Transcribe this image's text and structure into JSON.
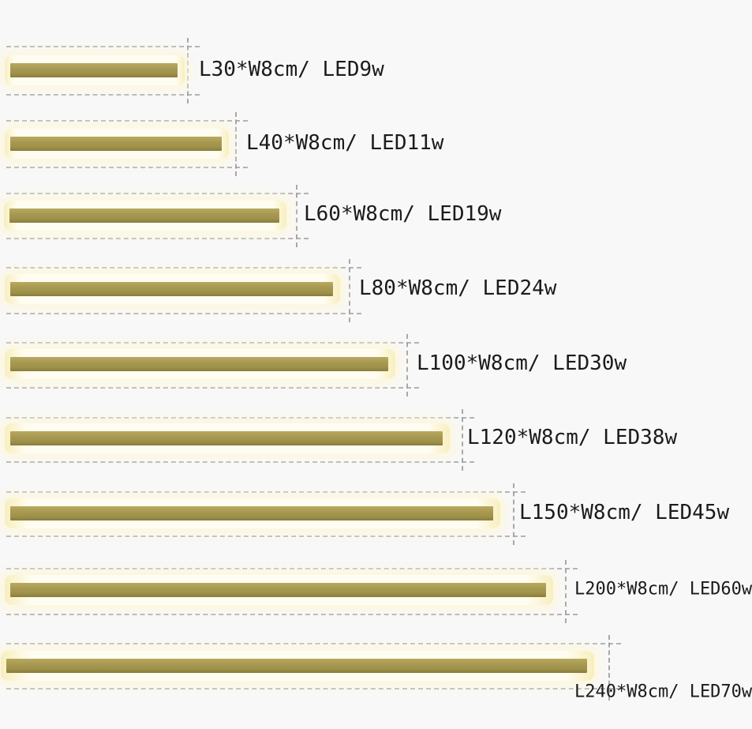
{
  "figure": {
    "description": "LED wall lamp size chart",
    "unit_width": "W8cm"
  },
  "colors": {
    "background": "#f8f8f8",
    "bar_gold": "#a79950",
    "bar_gold_dark": "#887d3c",
    "glow_warm_white": "#fdf7dc",
    "measure_dash": "#a8a8a8",
    "label_text": "#1b1b1b"
  },
  "rows": [
    {
      "label": "L30*W8cm/ LED9w",
      "length_cm": 30,
      "width_cm": 8,
      "led": "9w"
    },
    {
      "label": "L40*W8cm/ LED11w",
      "length_cm": 40,
      "width_cm": 8,
      "led": "11w"
    },
    {
      "label": "L60*W8cm/ LED19w",
      "length_cm": 60,
      "width_cm": 8,
      "led": "19w"
    },
    {
      "label": "L80*W8cm/ LED24w",
      "length_cm": 80,
      "width_cm": 8,
      "led": "24w"
    },
    {
      "label": "L100*W8cm/ LED30w",
      "length_cm": 100,
      "width_cm": 8,
      "led": "30w"
    },
    {
      "label": "L120*W8cm/ LED38w",
      "length_cm": 120,
      "width_cm": 8,
      "led": "38w"
    },
    {
      "label": "L150*W8cm/ LED45w",
      "length_cm": 150,
      "width_cm": 8,
      "led": "45w"
    },
    {
      "label": "L200*W8cm/ LED60w",
      "length_cm": 200,
      "width_cm": 8,
      "led": "60w"
    },
    {
      "label": "L240*W8cm/ LED70w",
      "length_cm": 240,
      "width_cm": 8,
      "led": "70w"
    }
  ]
}
